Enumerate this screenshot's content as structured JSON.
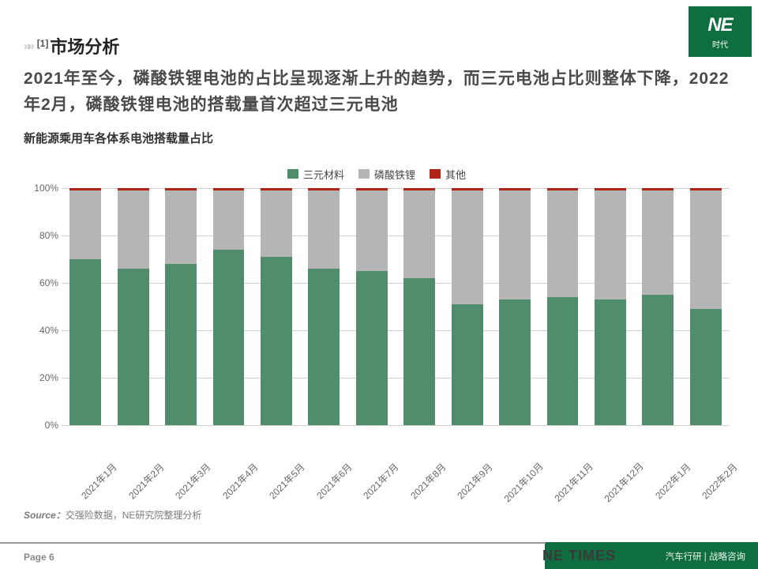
{
  "logo": {
    "text": "NE",
    "subtext": "时代",
    "bg": "#0f6e3f",
    "fg": "#ffffff"
  },
  "section": {
    "superscript": "[1]",
    "title": "市场分析"
  },
  "main_text": "2021年至今，磷酸铁锂电池的占比呈现逐渐上升的趋势，而三元电池占比则整体下降，2022年2月，磷酸铁锂电池的搭载量首次超过三元电池",
  "subtitle": "新能源乘用车各体系电池搭载量占比",
  "chart": {
    "type": "stacked-bar-100pct",
    "series": [
      {
        "name": "三元材料",
        "color": "#4f8d6d"
      },
      {
        "name": "磷酸铁锂",
        "color": "#b5b5b5"
      },
      {
        "name": "其他",
        "color": "#b02418"
      }
    ],
    "categories": [
      "2021年1月",
      "2021年2月",
      "2021年3月",
      "2021年4月",
      "2021年5月",
      "2021年6月",
      "2021年7月",
      "2021年8月",
      "2021年9月",
      "2021年10月",
      "2021年11月",
      "2021年12月",
      "2022年1月",
      "2022年2月"
    ],
    "values": [
      [
        70,
        29,
        1
      ],
      [
        66,
        33,
        1
      ],
      [
        68,
        31,
        1
      ],
      [
        74,
        25,
        1
      ],
      [
        71,
        28,
        1
      ],
      [
        66,
        33,
        1
      ],
      [
        65,
        34,
        1
      ],
      [
        62,
        37,
        1
      ],
      [
        51,
        48,
        1
      ],
      [
        53,
        46,
        1
      ],
      [
        54,
        45,
        1
      ],
      [
        53,
        46,
        1
      ],
      [
        55,
        44,
        1
      ],
      [
        49,
        50,
        1
      ]
    ],
    "ylim": [
      0,
      100
    ],
    "ytick_step": 20,
    "ytick_suffix": "%",
    "grid_color": "#d0d0d0",
    "background_color": "#ffffff",
    "bar_width_pct": 76,
    "label_fontsize": 12,
    "legend_fontsize": 13
  },
  "source": {
    "label": "Source：",
    "text": "交强险数据，NE研究院整理分析"
  },
  "footer": {
    "page": "Page 6",
    "brand": "NE TIMES",
    "right": "汽车行研 | 战略咨询",
    "accent": "#0f6e3f"
  }
}
